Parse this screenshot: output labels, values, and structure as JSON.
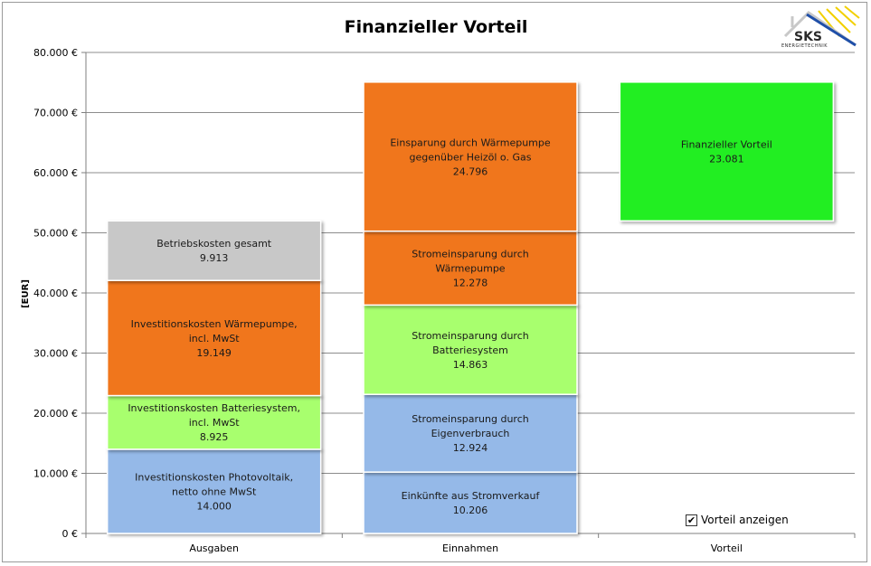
{
  "chart_data": {
    "type": "bar",
    "stacked": true,
    "title": "Finanzieller Vorteil",
    "ylabel": "[EUR]",
    "ylim": [
      0,
      80000
    ],
    "ytick_values": [
      0,
      10000,
      20000,
      30000,
      40000,
      50000,
      60000,
      70000,
      80000
    ],
    "ytick_labels": [
      "0 €",
      "10.000 €",
      "20.000 €",
      "30.000 €",
      "40.000 €",
      "50.000 €",
      "60.000 €",
      "70.000 €",
      "80.000 €"
    ],
    "categories": [
      "Ausgaben",
      "Einnahmen",
      "Vorteil"
    ],
    "grid": true,
    "bars": [
      {
        "category": "Ausgaben",
        "base": 0,
        "segments": [
          {
            "lines": [
              "Investitionskosten Photovoltaik,",
              "netto ohne MwSt"
            ],
            "value_label": "14.000",
            "value": 14000,
            "color": "#95b9e8"
          },
          {
            "lines": [
              "Investitionskosten Batteriesystem,",
              "incl. MwSt"
            ],
            "value_label": "8.925",
            "value": 8925,
            "color": "#a8ff6e"
          },
          {
            "lines": [
              "Investitionskosten Wärmepumpe,",
              "incl. MwSt"
            ],
            "value_label": "19.149",
            "value": 19149,
            "color": "#f0761a"
          },
          {
            "lines": [
              "Betriebskosten gesamt"
            ],
            "value_label": "9.913",
            "value": 9913,
            "color": "#c8c8c8"
          }
        ]
      },
      {
        "category": "Einnahmen",
        "base": 0,
        "segments": [
          {
            "lines": [
              "Einkünfte aus Stromverkauf"
            ],
            "value_label": "10.206",
            "value": 10206,
            "color": "#95b9e8"
          },
          {
            "lines": [
              "Stromeinsparung durch",
              "Eigenverbrauch"
            ],
            "value_label": "12.924",
            "value": 12924,
            "color": "#95b9e8"
          },
          {
            "lines": [
              "Stromeinsparung durch",
              "Batteriesystem"
            ],
            "value_label": "14.863",
            "value": 14863,
            "color": "#a8ff6e"
          },
          {
            "lines": [
              "Stromeinsparung durch",
              "Wärmepumpe"
            ],
            "value_label": "12.278",
            "value": 12278,
            "color": "#f0761a"
          },
          {
            "lines": [
              "Einsparung durch Wärmepumpe",
              "gegenüber Heizöl o. Gas"
            ],
            "value_label": "24.796",
            "value": 24796,
            "color": "#f0761a"
          }
        ]
      },
      {
        "category": "Vorteil",
        "base": 51987,
        "segments": [
          {
            "lines": [
              "Finanzieller Vorteil"
            ],
            "value_label": "23.081",
            "value": 23081,
            "color": "#22ee22"
          }
        ]
      }
    ]
  },
  "logo": {
    "text": "SKS",
    "subtext": "ENERGIETECHNIK"
  },
  "toggle": {
    "label": "Vorteil anzeigen",
    "checked": true,
    "check_glyph": "✔"
  }
}
